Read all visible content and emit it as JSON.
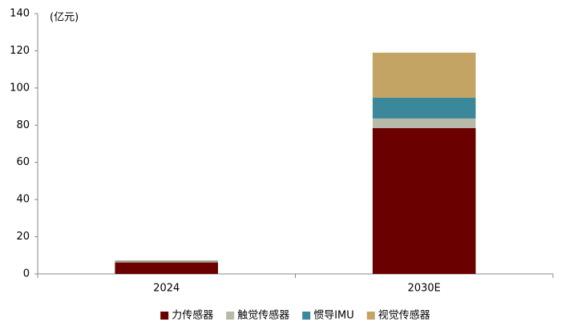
{
  "chart_data": {
    "type": "stacked_bar",
    "unit_label": "(亿元)",
    "categories": [
      "2024",
      "2030E"
    ],
    "series": [
      {
        "name": "力传感器",
        "color": "#6b0000",
        "values": [
          6.2,
          78.4
        ]
      },
      {
        "name": "触觉传感器",
        "color": "#b9b9a9",
        "values": [
          0.5,
          5.2
        ]
      },
      {
        "name": "惯导IMU",
        "color": "#3a889a",
        "values": [
          0.3,
          11.2
        ]
      },
      {
        "name": "视觉传感器",
        "color": "#c4a464",
        "values": [
          0.3,
          24.2
        ]
      }
    ],
    "ylim": [
      0,
      140
    ],
    "yticks": [
      0,
      20,
      40,
      60,
      80,
      100,
      120,
      140
    ],
    "grid": false,
    "legend": "bottom"
  }
}
